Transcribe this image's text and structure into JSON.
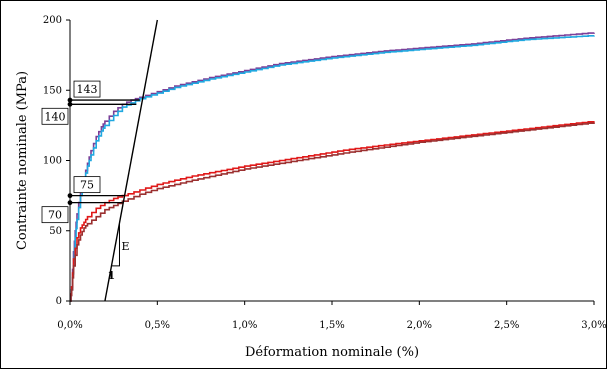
{
  "chart_data": {
    "type": "line",
    "xlabel": "Déformation nominale (%)",
    "ylabel": "Contrainte nominale (MPa)",
    "xlim": [
      0,
      3.0
    ],
    "ylim": [
      0,
      200
    ],
    "x_ticks": [
      0,
      0.5,
      1.0,
      1.5,
      2.0,
      2.5,
      3.0
    ],
    "x_tick_labels": [
      "0,0%",
      "0,5%",
      "1,0%",
      "1,5%",
      "2,0%",
      "2,5%",
      "3,0%"
    ],
    "y_ticks": [
      0,
      50,
      100,
      150,
      200
    ],
    "y_tick_labels": [
      "0",
      "50",
      "100",
      "150",
      "200"
    ],
    "grid": false,
    "series": [
      {
        "color": "#7b3f98",
        "x": [
          0.0,
          0.01,
          0.02,
          0.03,
          0.04,
          0.06,
          0.08,
          0.1,
          0.12,
          0.15,
          0.18,
          0.2,
          0.25,
          0.3,
          0.35,
          0.4,
          0.5,
          0.6,
          0.8,
          1.0,
          1.2,
          1.5,
          1.8,
          2.0,
          2.3,
          2.6,
          3.0
        ],
        "y": [
          0,
          10,
          35,
          50,
          62,
          78,
          88,
          98,
          107,
          117,
          124,
          128,
          135,
          140,
          143,
          145,
          149,
          153,
          159,
          164,
          169,
          174,
          178,
          180,
          183,
          187,
          191
        ]
      },
      {
        "color": "#1fa8e0",
        "x": [
          0.0,
          0.01,
          0.02,
          0.03,
          0.04,
          0.06,
          0.08,
          0.1,
          0.12,
          0.15,
          0.18,
          0.2,
          0.25,
          0.3,
          0.35,
          0.4,
          0.5,
          0.6,
          0.8,
          1.0,
          1.2,
          1.5,
          1.8,
          2.0,
          2.3,
          2.6,
          3.0
        ],
        "y": [
          0,
          8,
          30,
          45,
          58,
          75,
          86,
          96,
          104,
          114,
          121,
          125,
          132,
          138,
          141,
          144,
          148,
          152,
          158,
          163,
          168,
          173,
          177,
          179,
          182,
          186,
          189
        ]
      },
      {
        "color": "#e01818",
        "x": [
          0.0,
          0.01,
          0.02,
          0.04,
          0.06,
          0.08,
          0.1,
          0.15,
          0.2,
          0.25,
          0.3,
          0.4,
          0.5,
          0.7,
          1.0,
          1.3,
          1.6,
          2.0,
          2.5,
          3.0
        ],
        "y": [
          0,
          10,
          30,
          45,
          52,
          56,
          60,
          66,
          70,
          73,
          75,
          79,
          83,
          89,
          96,
          102,
          108,
          114,
          121,
          128
        ]
      },
      {
        "color": "#9b3030",
        "x": [
          0.0,
          0.01,
          0.02,
          0.04,
          0.06,
          0.08,
          0.1,
          0.15,
          0.2,
          0.25,
          0.3,
          0.4,
          0.5,
          0.7,
          1.0,
          1.3,
          1.6,
          2.0,
          2.5,
          3.0
        ],
        "y": [
          0,
          8,
          25,
          40,
          47,
          52,
          55,
          60,
          65,
          68,
          71,
          76,
          80,
          86,
          94,
          100,
          106,
          113,
          120,
          127
        ]
      }
    ],
    "modulus_line": {
      "x": [
        0.2,
        0.5
      ],
      "y": [
        0,
        200
      ]
    },
    "annotations": [
      {
        "text": "143",
        "y": 143,
        "x_end": 0.4
      },
      {
        "text": "140",
        "y": 140,
        "x_end": 0.38
      },
      {
        "text": "75",
        "y": 75,
        "x_end": 0.31
      },
      {
        "text": "70",
        "y": 70,
        "x_end": 0.3
      }
    ],
    "slope_label": "E",
    "slope_unit_label": "1"
  }
}
